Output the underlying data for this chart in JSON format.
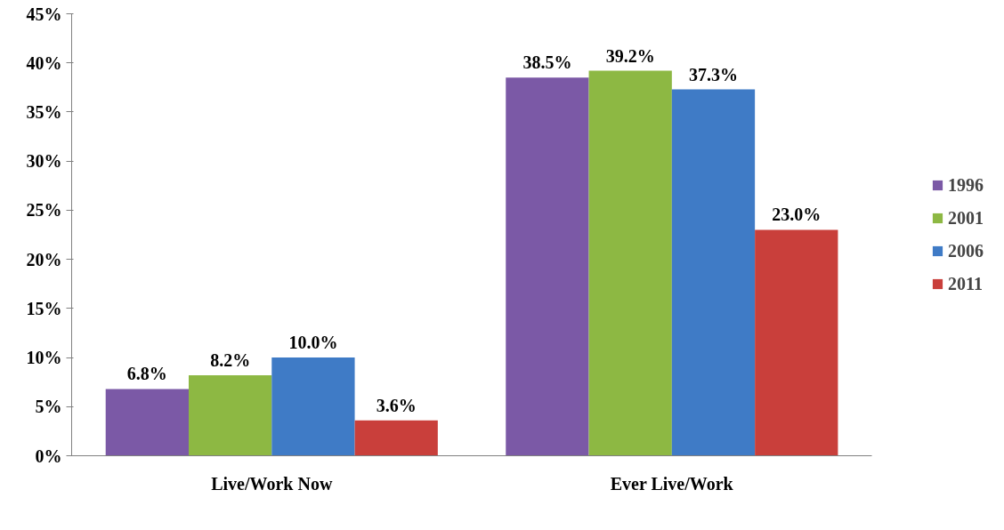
{
  "chart_data": {
    "type": "bar",
    "categories": [
      "Live/Work Now",
      "Ever Live/Work"
    ],
    "series": [
      {
        "name": "1996",
        "color": "#7b59a6",
        "values": [
          6.8,
          38.5
        ],
        "value_labels": [
          "6.8%",
          "38.5%"
        ]
      },
      {
        "name": "2001",
        "color": "#8db843",
        "values": [
          8.2,
          39.2
        ],
        "value_labels": [
          "8.2%",
          "39.2%"
        ]
      },
      {
        "name": "2006",
        "color": "#3f7bc6",
        "values": [
          10.0,
          37.3
        ],
        "value_labels": [
          "10.0%",
          "37.3%"
        ]
      },
      {
        "name": "2011",
        "color": "#c93f3b",
        "values": [
          3.6,
          23.0
        ],
        "value_labels": [
          "3.6%",
          "23.0%"
        ]
      }
    ],
    "ylim": [
      0,
      45
    ],
    "yticks": [
      {
        "value": 0,
        "label": "0%"
      },
      {
        "value": 5,
        "label": "5%"
      },
      {
        "value": 10,
        "label": "10%"
      },
      {
        "value": 15,
        "label": "15%"
      },
      {
        "value": 20,
        "label": "20%"
      },
      {
        "value": 25,
        "label": "25%"
      },
      {
        "value": 30,
        "label": "30%"
      },
      {
        "value": 35,
        "label": "35%"
      },
      {
        "value": 40,
        "label": "40%"
      },
      {
        "value": 45,
        "label": "45%"
      }
    ],
    "grid": false,
    "legend": "right"
  }
}
